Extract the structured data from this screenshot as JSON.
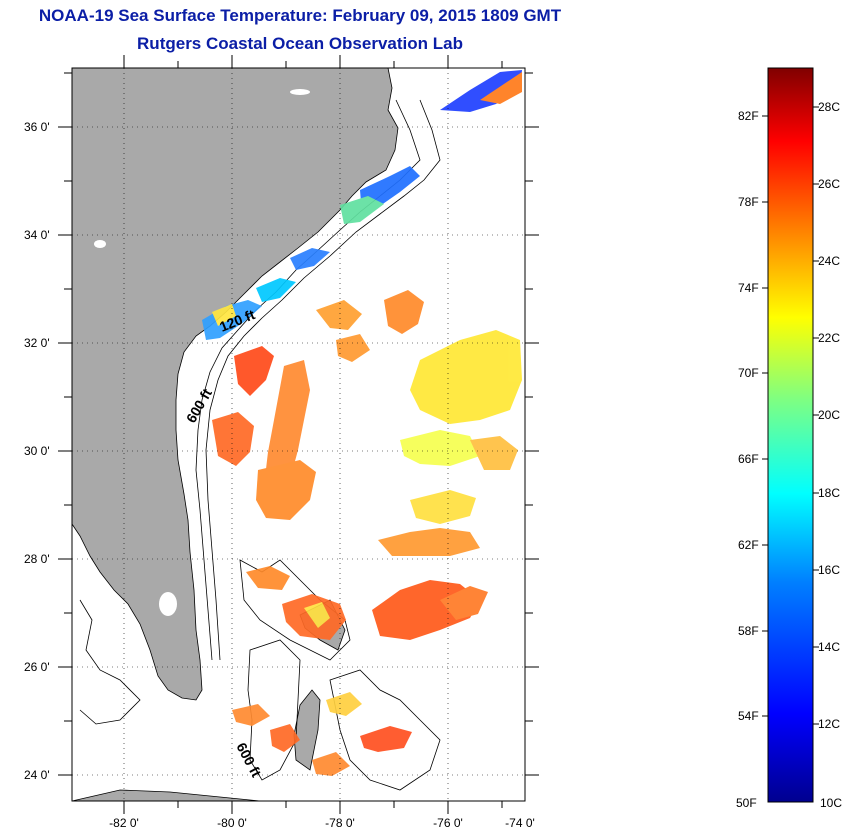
{
  "header": {
    "title": "NOAA-19 Sea Surface Temperature:  February 09, 2015 1809 GMT",
    "subtitle": "Rutgers Coastal Ocean Observation Lab"
  },
  "map": {
    "lat_labels": [
      "36 0'",
      "34 0'",
      "32 0'",
      "30 0'",
      "28 0'",
      "26 0'",
      "24 0'"
    ],
    "lon_labels": [
      "-82 0'",
      "-80 0'",
      "-78 0'",
      "-76 0'",
      "-74 0'"
    ],
    "contour_labels": [
      "120 ft",
      "600 ft",
      "600 ft"
    ],
    "colors": {
      "land": "#a9a9a9",
      "ocean": "#ffffff",
      "frame": "#000000"
    }
  },
  "colorbar": {
    "fahrenheit_labels": [
      "82F",
      "78F",
      "74F",
      "70F",
      "66F",
      "62F",
      "58F",
      "54F",
      "50F"
    ],
    "celsius_labels": [
      "28C",
      "26C",
      "24C",
      "22C",
      "20C",
      "18C",
      "16C",
      "14C",
      "12C",
      "10C"
    ],
    "fahrenheit_range": [
      50,
      84
    ],
    "celsius_range": [
      10,
      29
    ],
    "gradient": [
      "#00008f",
      "#0000ff",
      "#0080ff",
      "#00ffff",
      "#80ff80",
      "#ffff00",
      "#ff8000",
      "#ff0000",
      "#800000"
    ]
  }
}
